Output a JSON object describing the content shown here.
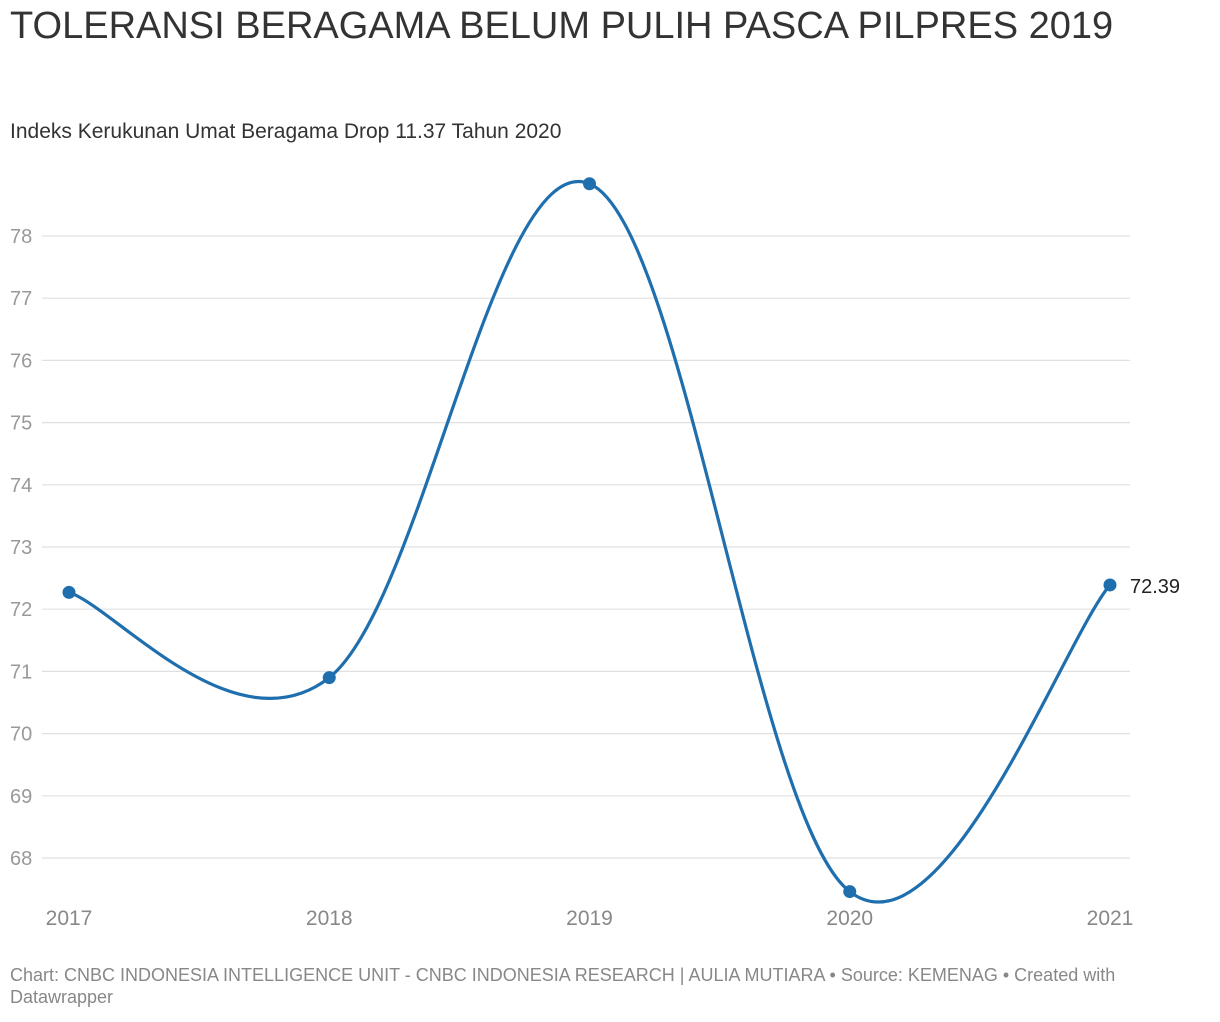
{
  "header": {
    "title": "TOLERANSI BERAGAMA BELUM PULIH PASCA PILPRES 2019",
    "subtitle": "Indeks Kerukunan Umat Beragama Drop 11.37 Tahun 2020"
  },
  "footer": {
    "credit": "Chart: CNBC INDONESIA INTELLIGENCE UNIT - CNBC INDONESIA RESEARCH | AULIA MUTIARA • Source: KEMENAG • Created with Datawrapper"
  },
  "colors": {
    "line": "#1f6fae",
    "grid": "#e0e0e0",
    "tick": "#999999"
  },
  "chart_data": {
    "type": "line",
    "title": "TOLERANSI BERAGAMA BELUM PULIH PASCA PILPRES 2019",
    "subtitle": "Indeks Kerukunan Umat Beragama Drop 11.37 Tahun 2020",
    "categories": [
      "2017",
      "2018",
      "2019",
      "2020",
      "2021"
    ],
    "values": [
      72.27,
      70.9,
      78.84,
      67.46,
      72.39
    ],
    "end_label": "72.39",
    "yticks": [
      "68",
      "69",
      "70",
      "71",
      "72",
      "73",
      "74",
      "75",
      "76",
      "77",
      "78"
    ],
    "ylim": [
      67.4,
      78.9
    ],
    "grid": true,
    "curve": "smooth"
  }
}
